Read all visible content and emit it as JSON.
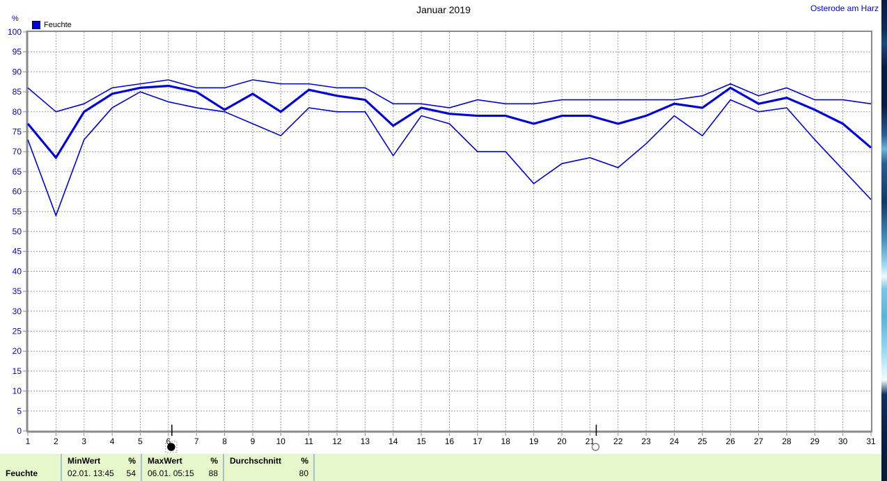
{
  "header": {
    "title": "Januar 2019",
    "station": "Osterode am Harz"
  },
  "legend": {
    "label": "Feuchte",
    "color": "#0000dd"
  },
  "axis": {
    "unit": "%"
  },
  "chart_data": {
    "type": "line",
    "title": "Januar 2019",
    "ylabel": "%",
    "ylim": [
      0,
      100
    ],
    "ytick_step": 5,
    "grid": true,
    "legend_position": "top-left",
    "line_color": "#0000dd",
    "x": [
      1,
      2,
      3,
      4,
      5,
      6,
      7,
      8,
      9,
      10,
      11,
      12,
      13,
      14,
      15,
      16,
      17,
      18,
      19,
      20,
      21,
      22,
      23,
      24,
      25,
      26,
      27,
      28,
      29,
      30,
      31
    ],
    "series": [
      {
        "name": "max",
        "style": "thin",
        "values": [
          86,
          80,
          82,
          86,
          87,
          88,
          86,
          86,
          88,
          87,
          87,
          86,
          86,
          82,
          82,
          81,
          83,
          82,
          82,
          83,
          83,
          83,
          83,
          83,
          84,
          87,
          84,
          86,
          83,
          83,
          82
        ]
      },
      {
        "name": "mean",
        "style": "thick",
        "values": [
          77,
          68.5,
          80,
          84.5,
          86,
          86.5,
          85,
          80.5,
          84.5,
          80,
          85.5,
          84,
          83,
          76.5,
          81,
          79.5,
          79,
          79,
          77,
          79,
          79,
          77,
          79,
          82,
          81,
          86,
          82,
          83.5,
          80.5,
          77,
          71
        ]
      },
      {
        "name": "min",
        "style": "thin",
        "values": [
          73,
          54,
          73,
          81,
          85,
          82.5,
          81,
          80,
          77,
          74,
          81,
          80,
          80,
          69,
          79,
          77,
          70,
          70,
          62,
          67,
          68.5,
          66,
          72,
          79,
          74,
          83,
          80,
          81,
          73,
          65.5,
          58
        ]
      }
    ],
    "moon_markers": [
      {
        "day": 6.1,
        "phase": "new-moon",
        "selected": true
      },
      {
        "day": 21.2,
        "phase": "full-moon",
        "selected": false
      }
    ]
  },
  "statusbar": {
    "series_label": "Feuchte",
    "min": {
      "header": "MinWert",
      "unit": "%",
      "date": "02.01. 13:45",
      "value": "54"
    },
    "max": {
      "header": "MaxWert",
      "unit": "%",
      "date": "06.01. 05:15",
      "value": "88"
    },
    "avg": {
      "header": "Durchschnitt",
      "unit": "%",
      "date": "",
      "value": "80"
    }
  }
}
